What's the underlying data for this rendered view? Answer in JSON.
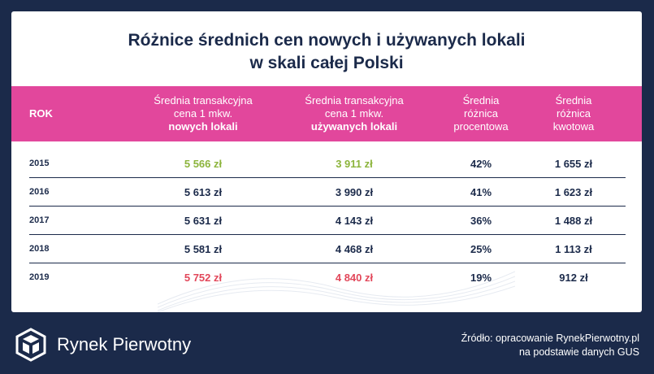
{
  "title": {
    "line1": "Różnice średnich cen nowych i używanych lokali",
    "line2": "w skali całej Polski"
  },
  "header": {
    "rok": "ROK",
    "new_line1": "Średnia transakcyjna",
    "new_line2": "cena 1 mkw.",
    "new_line3": "nowych lokali",
    "used_line1": "Średnia transakcyjna",
    "used_line2": "cena 1 mkw.",
    "used_line3": "używanych lokali",
    "pct_line1": "Średnia",
    "pct_line2": "różnica",
    "pct_line3": "procentowa",
    "amt_line1": "Średnia",
    "amt_line2": "różnica",
    "amt_line3": "kwotowa"
  },
  "rows": [
    {
      "year": "2015",
      "new_price": "5 566 zł",
      "used_price": "3 911 zł",
      "pct": "42%",
      "amount": "1 655 zł"
    },
    {
      "year": "2016",
      "new_price": "5 613 zł",
      "used_price": "3 990 zł",
      "pct": "41%",
      "amount": "1 623 zł"
    },
    {
      "year": "2017",
      "new_price": "5 631 zł",
      "used_price": "4 143 zł",
      "pct": "36%",
      "amount": "1 488 zł"
    },
    {
      "year": "2018",
      "new_price": "5 581 zł",
      "used_price": "4 468 zł",
      "pct": "25%",
      "amount": "1 113 zł"
    },
    {
      "year": "2019",
      "new_price": "5 752 zł",
      "used_price": "4 840 zł",
      "pct": "19%",
      "amount": "912 zł"
    }
  ],
  "colors": {
    "navy": "#1b2a4a",
    "pink": "#e2479c",
    "lowest_green": "#8cb43c",
    "highest_red": "#e2475a"
  },
  "footer": {
    "logo_icon": "rynek-pierwotny-logo-icon",
    "brand": "Rynek Pierwotny",
    "source_line1": "Źródło: opracowanie RynekPierwotny.pl",
    "source_line2": "na podstawie danych GUS"
  }
}
